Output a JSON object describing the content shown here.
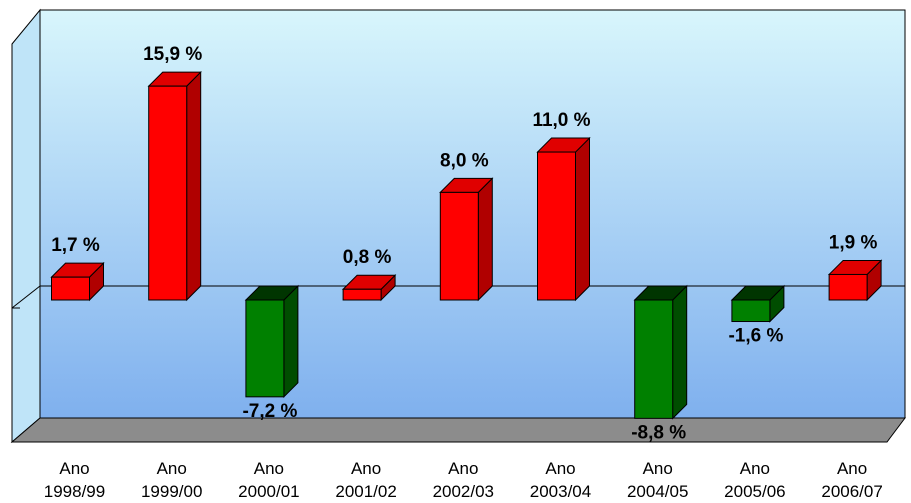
{
  "chart_data": {
    "type": "bar",
    "categories": [
      [
        "Ano",
        "1998/99"
      ],
      [
        "Ano",
        "1999/00"
      ],
      [
        "Ano",
        "2000/01"
      ],
      [
        "Ano",
        "2001/02"
      ],
      [
        "Ano",
        "2002/03"
      ],
      [
        "Ano",
        "2003/04"
      ],
      [
        "Ano",
        "2004/05"
      ],
      [
        "Ano",
        "2005/06"
      ],
      [
        "Ano",
        "2006/07"
      ]
    ],
    "values": [
      1.7,
      15.9,
      -7.2,
      0.8,
      8.0,
      11.0,
      -8.8,
      -1.6,
      1.9
    ],
    "data_labels": [
      "1,7 %",
      "15,9 %",
      "-7,2 %",
      "0,8 %",
      "8,0 %",
      "11,0 %",
      "-8,8 %",
      "-1,6 %",
      "1,9 %"
    ],
    "title": "",
    "xlabel": "",
    "ylabel": "",
    "ylim": [
      -9,
      17
    ],
    "grid": false,
    "legend": "none",
    "colors": {
      "positive": "#ff0000",
      "positive_side": "#b00000",
      "positive_top": "#e00000",
      "negative": "#008000",
      "negative_side": "#004d00",
      "negative_top": "#003500",
      "wall_top": "#d8f6fc",
      "wall_bottom": "#7fb0ee",
      "floor": "#8c8c8c"
    }
  }
}
